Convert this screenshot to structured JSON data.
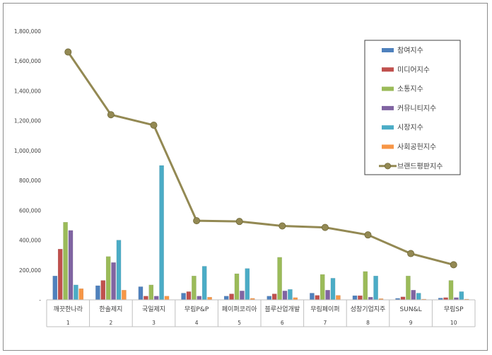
{
  "chart_data": {
    "type": "bar",
    "title": "",
    "xlabel": "",
    "ylabel": "",
    "ylim": [
      0,
      1800000
    ],
    "yticks": [
      "-",
      "200,000",
      "400,000",
      "600,000",
      "800,000",
      "1,000,000",
      "1,200,000",
      "1,400,000",
      "1,600,000",
      "1,800,000"
    ],
    "ytick_values": [
      0,
      200000,
      400000,
      600000,
      800000,
      1000000,
      1200000,
      1400000,
      1600000,
      1800000
    ],
    "grid": false,
    "legend_position": "top-right",
    "categories": [
      "깨끗한나라",
      "한솔제지",
      "국일제지",
      "무림P&P",
      "페이퍼코리아",
      "블루산업개발",
      "무림페이퍼",
      "성창기업지주",
      "SUN&L",
      "무림SP"
    ],
    "ranks": [
      "1",
      "2",
      "3",
      "4",
      "5",
      "6",
      "7",
      "8",
      "9",
      "10"
    ],
    "series": [
      {
        "name": "참여지수",
        "type": "bar",
        "color": "#4f81bd",
        "values": [
          160000,
          95000,
          88000,
          45000,
          25000,
          25000,
          45000,
          28000,
          10000,
          12000
        ]
      },
      {
        "name": "미디어지수",
        "type": "bar",
        "color": "#c0504d",
        "values": [
          340000,
          130000,
          25000,
          55000,
          40000,
          40000,
          30000,
          28000,
          20000,
          15000
        ]
      },
      {
        "name": "소통지수",
        "type": "bar",
        "color": "#9bbb59",
        "values": [
          520000,
          290000,
          100000,
          160000,
          175000,
          285000,
          170000,
          190000,
          160000,
          130000
        ]
      },
      {
        "name": "커뮤니티지수",
        "type": "bar",
        "color": "#8064a2",
        "values": [
          465000,
          250000,
          25000,
          25000,
          60000,
          60000,
          65000,
          18000,
          65000,
          15000
        ]
      },
      {
        "name": "시장지수",
        "type": "bar",
        "color": "#4bacc6",
        "values": [
          100000,
          400000,
          900000,
          225000,
          210000,
          70000,
          145000,
          160000,
          45000,
          55000
        ]
      },
      {
        "name": "사회공헌지수",
        "type": "bar",
        "color": "#f79646",
        "values": [
          75000,
          65000,
          25000,
          18000,
          10000,
          15000,
          30000,
          8000,
          5000,
          5000
        ]
      },
      {
        "name": "브랜드평판지수",
        "type": "line",
        "color": "#938953",
        "values": [
          1660000,
          1240000,
          1170000,
          530000,
          525000,
          495000,
          485000,
          435000,
          310000,
          235000
        ]
      }
    ]
  }
}
